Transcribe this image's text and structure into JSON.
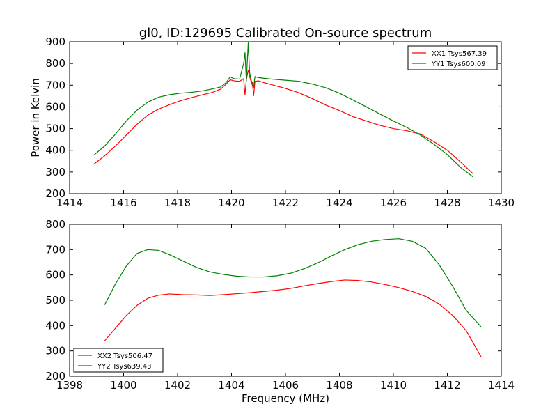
{
  "figure": {
    "title": "gl0, ID:129695 Calibrated On-source spectrum",
    "ylabel": "Power in Kelvin",
    "xlabel": "Frequency (MHz)"
  },
  "chart_data": [
    {
      "type": "line",
      "title": "gl0, ID:129695 Calibrated On-source spectrum",
      "xlabel": "",
      "ylabel": "Power in Kelvin",
      "xlim": [
        1414,
        1430
      ],
      "ylim": [
        200,
        900
      ],
      "xticks": [
        1414,
        1416,
        1418,
        1420,
        1422,
        1424,
        1426,
        1428,
        1430
      ],
      "yticks": [
        200,
        300,
        400,
        500,
        600,
        700,
        800,
        900
      ],
      "grid": false,
      "legend_position": "top-right",
      "series": [
        {
          "name": "XX1 Tsys567.39",
          "color": "#ff0000",
          "points": [
            [
              1414.9,
              336
            ],
            [
              1415.3,
              375
            ],
            [
              1415.7,
              420
            ],
            [
              1416.1,
              470
            ],
            [
              1416.5,
              520
            ],
            [
              1416.9,
              562
            ],
            [
              1417.3,
              590
            ],
            [
              1417.7,
              610
            ],
            [
              1418.1,
              628
            ],
            [
              1418.5,
              642
            ],
            [
              1418.9,
              655
            ],
            [
              1419.3,
              667
            ],
            [
              1419.6,
              682
            ],
            [
              1419.8,
              705
            ],
            [
              1419.95,
              725
            ],
            [
              1420.1,
              720
            ],
            [
              1420.3,
              718
            ],
            [
              1420.45,
              730
            ],
            [
              1420.5,
              655
            ],
            [
              1420.55,
              725
            ],
            [
              1420.62,
              770
            ],
            [
              1420.67,
              740
            ],
            [
              1420.72,
              720
            ],
            [
              1420.77,
              715
            ],
            [
              1420.82,
              652
            ],
            [
              1420.87,
              718
            ],
            [
              1421.0,
              720
            ],
            [
              1421.2,
              712
            ],
            [
              1421.5,
              702
            ],
            [
              1422.0,
              685
            ],
            [
              1422.5,
              665
            ],
            [
              1423.0,
              638
            ],
            [
              1423.5,
              608
            ],
            [
              1424.0,
              583
            ],
            [
              1424.5,
              555
            ],
            [
              1425.0,
              535
            ],
            [
              1425.5,
              515
            ],
            [
              1426.0,
              500
            ],
            [
              1426.5,
              490
            ],
            [
              1427.0,
              475
            ],
            [
              1427.5,
              440
            ],
            [
              1428.0,
              400
            ],
            [
              1428.5,
              345
            ],
            [
              1428.95,
              292
            ]
          ]
        },
        {
          "name": "YY1 Tsys600.09",
          "color": "#008000",
          "points": [
            [
              1414.9,
              378
            ],
            [
              1415.3,
              420
            ],
            [
              1415.7,
              475
            ],
            [
              1416.1,
              535
            ],
            [
              1416.5,
              585
            ],
            [
              1416.9,
              622
            ],
            [
              1417.3,
              645
            ],
            [
              1417.7,
              656
            ],
            [
              1418.1,
              663
            ],
            [
              1418.5,
              667
            ],
            [
              1418.9,
              673
            ],
            [
              1419.3,
              683
            ],
            [
              1419.6,
              692
            ],
            [
              1419.8,
              712
            ],
            [
              1419.95,
              738
            ],
            [
              1420.1,
              730
            ],
            [
              1420.3,
              728
            ],
            [
              1420.45,
              800
            ],
            [
              1420.5,
              850
            ],
            [
              1420.55,
              720
            ],
            [
              1420.62,
              895
            ],
            [
              1420.67,
              760
            ],
            [
              1420.72,
              730
            ],
            [
              1420.77,
              700
            ],
            [
              1420.82,
              690
            ],
            [
              1420.87,
              740
            ],
            [
              1421.0,
              735
            ],
            [
              1421.5,
              728
            ],
            [
              1422.0,
              723
            ],
            [
              1422.5,
              718
            ],
            [
              1423.0,
              705
            ],
            [
              1423.5,
              688
            ],
            [
              1424.0,
              663
            ],
            [
              1424.5,
              632
            ],
            [
              1425.0,
              600
            ],
            [
              1425.5,
              567
            ],
            [
              1426.0,
              535
            ],
            [
              1426.5,
              505
            ],
            [
              1427.0,
              470
            ],
            [
              1427.5,
              428
            ],
            [
              1428.0,
              380
            ],
            [
              1428.5,
              320
            ],
            [
              1428.95,
              278
            ]
          ]
        }
      ]
    },
    {
      "type": "line",
      "title": "",
      "xlabel": "Frequency (MHz)",
      "ylabel": "",
      "xlim": [
        1398,
        1414
      ],
      "ylim": [
        200,
        800
      ],
      "xticks": [
        1398,
        1400,
        1402,
        1404,
        1406,
        1408,
        1410,
        1412,
        1414
      ],
      "yticks": [
        200,
        300,
        400,
        500,
        600,
        700,
        800
      ],
      "grid": false,
      "legend_position": "bottom-left",
      "series": [
        {
          "name": "XX2 Tsys506.47",
          "color": "#ff0000",
          "points": [
            [
              1399.3,
              340
            ],
            [
              1399.7,
              390
            ],
            [
              1400.1,
              440
            ],
            [
              1400.5,
              480
            ],
            [
              1400.9,
              508
            ],
            [
              1401.3,
              520
            ],
            [
              1401.7,
              525
            ],
            [
              1402.2,
              522
            ],
            [
              1402.7,
              521
            ],
            [
              1403.2,
              519
            ],
            [
              1403.7,
              522
            ],
            [
              1404.2,
              526
            ],
            [
              1404.7,
              530
            ],
            [
              1405.2,
              535
            ],
            [
              1405.7,
              540
            ],
            [
              1406.2,
              547
            ],
            [
              1406.7,
              557
            ],
            [
              1407.2,
              566
            ],
            [
              1407.7,
              574
            ],
            [
              1408.2,
              580
            ],
            [
              1408.7,
              578
            ],
            [
              1409.2,
              572
            ],
            [
              1409.7,
              562
            ],
            [
              1410.2,
              550
            ],
            [
              1410.7,
              535
            ],
            [
              1411.2,
              515
            ],
            [
              1411.7,
              485
            ],
            [
              1412.2,
              440
            ],
            [
              1412.7,
              380
            ],
            [
              1413.25,
              277
            ]
          ]
        },
        {
          "name": "YY2 Tsys639.43",
          "color": "#008000",
          "points": [
            [
              1399.3,
              482
            ],
            [
              1399.7,
              565
            ],
            [
              1400.1,
              635
            ],
            [
              1400.5,
              685
            ],
            [
              1400.9,
              700
            ],
            [
              1401.3,
              697
            ],
            [
              1401.7,
              680
            ],
            [
              1402.2,
              655
            ],
            [
              1402.7,
              630
            ],
            [
              1403.2,
              612
            ],
            [
              1403.7,
              602
            ],
            [
              1404.2,
              595
            ],
            [
              1404.7,
              592
            ],
            [
              1405.2,
              592
            ],
            [
              1405.7,
              597
            ],
            [
              1406.2,
              607
            ],
            [
              1406.7,
              625
            ],
            [
              1407.2,
              648
            ],
            [
              1407.7,
              675
            ],
            [
              1408.2,
              700
            ],
            [
              1408.7,
              720
            ],
            [
              1409.2,
              733
            ],
            [
              1409.7,
              740
            ],
            [
              1410.2,
              743
            ],
            [
              1410.7,
              733
            ],
            [
              1411.2,
              705
            ],
            [
              1411.7,
              640
            ],
            [
              1412.2,
              555
            ],
            [
              1412.7,
              460
            ],
            [
              1413.25,
              395
            ]
          ]
        }
      ]
    }
  ]
}
